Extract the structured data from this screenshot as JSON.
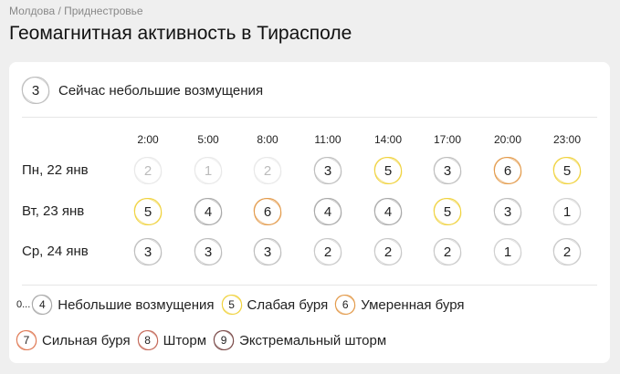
{
  "breadcrumb": "Молдова / Приднестровье",
  "title": "Геомагнитная активность в Тирасполе",
  "current": {
    "value": "3",
    "text": "Сейчас небольшие возмущения"
  },
  "times": [
    "2:00",
    "5:00",
    "8:00",
    "11:00",
    "14:00",
    "17:00",
    "20:00",
    "23:00"
  ],
  "days": [
    {
      "label": "Пн, 22 янв",
      "values": [
        "2",
        "1",
        "2",
        "3",
        "5",
        "3",
        "6",
        "5"
      ],
      "past": [
        true,
        true,
        true,
        false,
        false,
        false,
        false,
        false
      ]
    },
    {
      "label": "Вт, 23 янв",
      "values": [
        "5",
        "4",
        "6",
        "4",
        "4",
        "5",
        "3",
        "1"
      ]
    },
    {
      "label": "Ср, 24 янв",
      "values": [
        "3",
        "3",
        "3",
        "2",
        "2",
        "2",
        "1",
        "2"
      ]
    }
  ],
  "legend": {
    "prefix": "0...",
    "items": [
      {
        "value": "4",
        "label": "Небольшие возмущения"
      },
      {
        "value": "5",
        "label": "Слабая буря"
      },
      {
        "value": "6",
        "label": "Умеренная буря"
      },
      {
        "value": "7",
        "label": "Сильная буря"
      },
      {
        "value": "8",
        "label": "Шторм"
      },
      {
        "value": "9",
        "label": "Экстремальный шторм"
      }
    ]
  },
  "colors": {
    "1": "#d0d0d0",
    "2": "#c8c8c8",
    "3": "#bdbdbd",
    "4": "#a8a8a8",
    "5": "#f0d23c",
    "6": "#e39a4a",
    "7": "#e07a55",
    "8": "#c46a5a",
    "9": "#7a4a48"
  }
}
